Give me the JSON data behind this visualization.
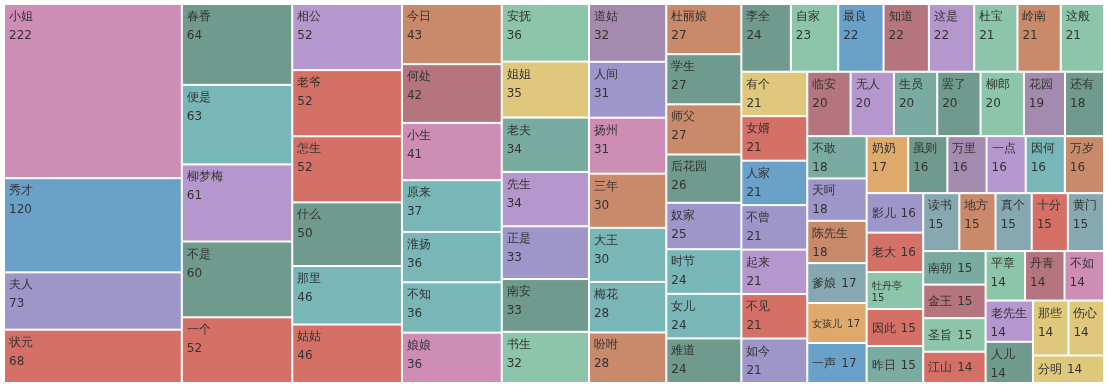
{
  "chart_data": {
    "type": "other",
    "data_labels": true,
    "categories": [
      "小姐",
      "秀才",
      "夫人",
      "状元",
      "春香",
      "便是",
      "柳梦梅",
      "不是",
      "一个",
      "相公",
      "老爷",
      "怎生",
      "什么",
      "那里",
      "姑姑",
      "今日",
      "何处",
      "小生",
      "原来",
      "淮扬",
      "不知",
      "娘娘",
      "安抚",
      "姐姐",
      "老夫",
      "先生",
      "正是",
      "南安",
      "书生",
      "道姑",
      "人间",
      "扬州",
      "三年",
      "大王",
      "梅花",
      "吩咐",
      "杜丽娘",
      "学生",
      "师父",
      "后花园",
      "奴家",
      "时节",
      "女儿",
      "难道",
      "李全",
      "自家",
      "最良",
      "知道",
      "这是",
      "杜宝",
      "岭南",
      "这般",
      "有个",
      "女婿",
      "人家",
      "不曾",
      "起来",
      "不见",
      "如今",
      "临安",
      "无人",
      "生员",
      "罢了",
      "柳郎",
      "花园",
      "还有",
      "不敢",
      "天呵",
      "陈先生",
      "爹娘",
      "女孩儿",
      "一声",
      "奶奶",
      "虽则",
      "万里",
      "一点",
      "因何",
      "万岁",
      "影儿",
      "老大",
      "牡丹亭",
      "因此",
      "昨日",
      "读书",
      "地方",
      "真个",
      "十分",
      "黄门",
      "南朝",
      "金王",
      "圣旨",
      "江山",
      "平章",
      "丹青",
      "不如",
      "老先生",
      "人儿",
      "那些",
      "伤心",
      "分明"
    ],
    "values": [
      222,
      120,
      73,
      68,
      64,
      63,
      61,
      60,
      52,
      52,
      52,
      52,
      50,
      46,
      46,
      43,
      42,
      41,
      37,
      36,
      36,
      36,
      36,
      35,
      34,
      34,
      33,
      33,
      32,
      32,
      31,
      31,
      30,
      30,
      28,
      28,
      27,
      27,
      27,
      26,
      25,
      24,
      24,
      24,
      24,
      23,
      22,
      22,
      22,
      21,
      21,
      21,
      21,
      21,
      21,
      21,
      21,
      21,
      21,
      20,
      20,
      20,
      20,
      20,
      19,
      18,
      18,
      18,
      18,
      17,
      17,
      17,
      17,
      16,
      16,
      16,
      16,
      16,
      16,
      16,
      15,
      15,
      15,
      15,
      15,
      15,
      15,
      15,
      15,
      15,
      15,
      14,
      14,
      14,
      14,
      14,
      14,
      14,
      14,
      14
    ],
    "colors": [
      "#cd8db5",
      "#6aa1c8",
      "#9e95c8",
      "#d57067",
      "#6f9a8d",
      "#79b6b7",
      "#b596cd",
      "#6f9a8d",
      "#d57067",
      "#b596cd",
      "#d57067",
      "#d57067",
      "#6f9a8d",
      "#79b6b7",
      "#d57067",
      "#c98a6b",
      "#b5757e",
      "#cd8db5",
      "#79b6b7",
      "#79b6b7",
      "#79b6b7",
      "#cd8db5",
      "#8cc5a9",
      "#dfc77c",
      "#79aba0",
      "#b596cd",
      "#9e95c8",
      "#6f9a8d",
      "#8cc5a9",
      "#a48aae",
      "#9e95c8",
      "#cd8db5",
      "#c98a6b",
      "#79b6b7",
      "#79b6b7",
      "#c98a6b",
      "#c98a6b",
      "#6f9a8d",
      "#c98a6b",
      "#6f9a8d",
      "#9e95c8",
      "#79b6b7",
      "#79b6b7",
      "#6f9a8d",
      "#6f9a8d",
      "#8cc5a9",
      "#6aa1c8",
      "#b5757e",
      "#b596cd",
      "#8cc5a9",
      "#c98a6b",
      "#8cc5a9",
      "#dfc77c",
      "#d57067",
      "#6aa1c8",
      "#9e95c8",
      "#b596cd",
      "#d57067",
      "#9e95c8",
      "#b5757e",
      "#b596cd",
      "#79aba0",
      "#6f9a8d",
      "#8cc5a9",
      "#a48aae",
      "#6f9a8d",
      "#79aba0",
      "#9e95c8",
      "#c98a6b",
      "#86a8b0",
      "#dea96b",
      "#6aa1c8",
      "#dea96b",
      "#6f9a8d",
      "#a48aae",
      "#b596cd",
      "#79b6b7",
      "#c98a6b",
      "#9e95c8",
      "#d57067",
      "#8cc5a9",
      "#d57067",
      "#79aba0",
      "#86a8b0",
      "#c98a6b",
      "#86a8b0",
      "#d57067",
      "#86a8b0",
      "#79aba0",
      "#b5757e",
      "#8cc5a9",
      "#d57067",
      "#8cc5a9",
      "#b5757e",
      "#cd8db5",
      "#b596cd",
      "#6f9a8d",
      "#dfc77c",
      "#dfc77c",
      "#dfc77c"
    ]
  }
}
